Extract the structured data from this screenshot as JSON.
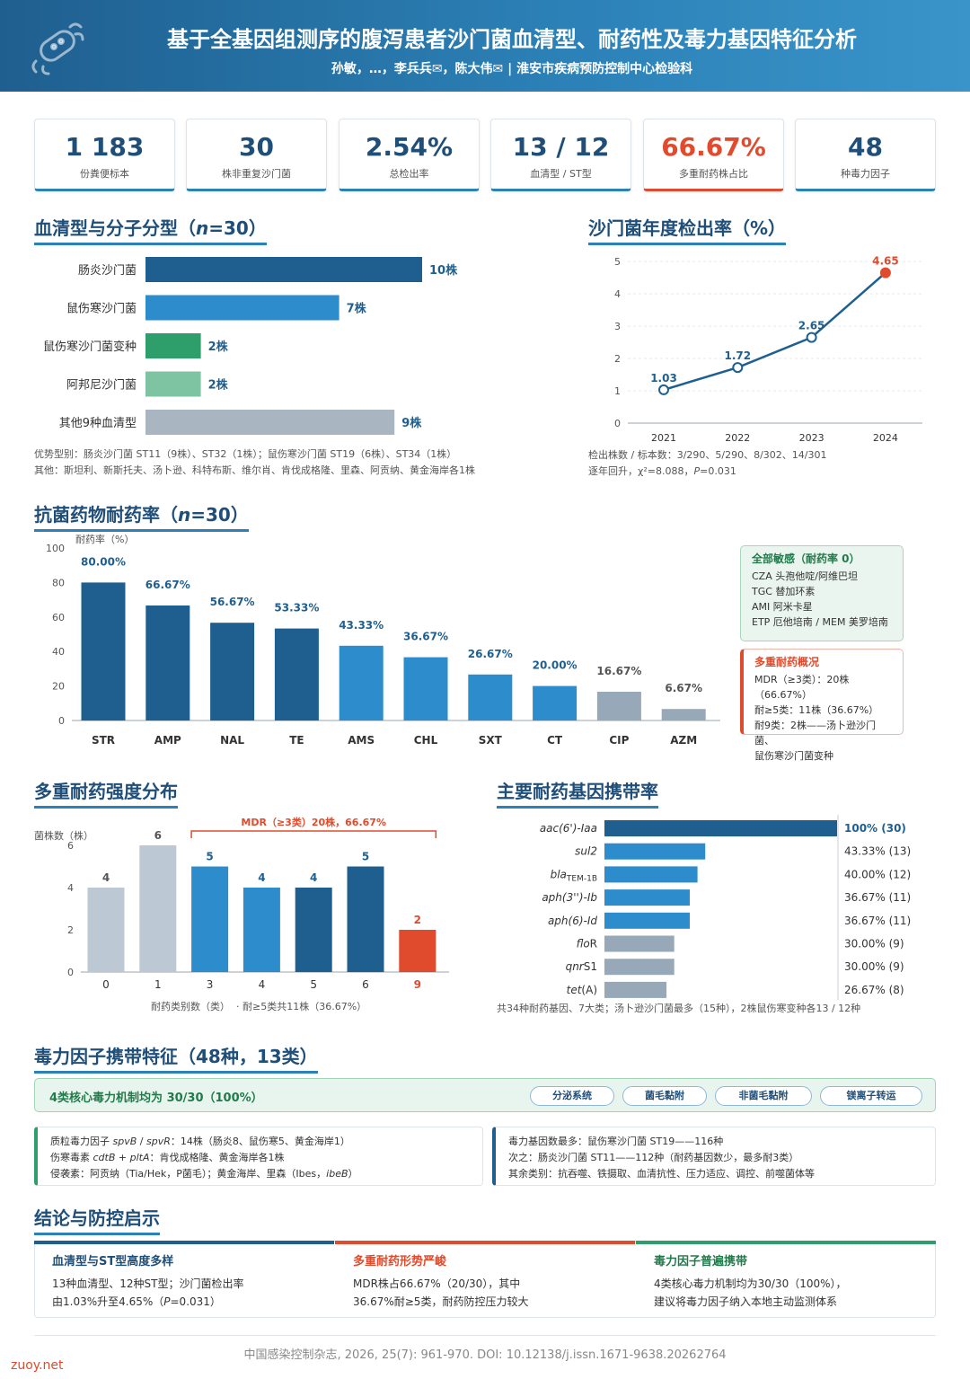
{
  "header": {
    "title": "基于全基因组测序的腹泻患者沙门菌血清型、耐药性及毒力基因特征分析",
    "authors": "孙敏，…，李兵兵✉，陈大伟✉ | 淮安市疾病预防控制中心检验科"
  },
  "stats": [
    {
      "value": "1 183",
      "label": "份粪便标本"
    },
    {
      "value": "30",
      "label": "株非重复沙门菌"
    },
    {
      "value": "2.54%",
      "label": "总检出率"
    },
    {
      "value": "13 / 12",
      "label": "血清型 / ST型"
    },
    {
      "value": "66.67%",
      "label": "多重耐药株占比"
    },
    {
      "value": "48",
      "label": "种毒力因子"
    }
  ],
  "serotype": {
    "title": "血清型与分子分型（n=30）",
    "bars": [
      {
        "name": "肠炎沙门菌",
        "value": 10,
        "label": "10株",
        "color": "#1f5f8f"
      },
      {
        "name": "鼠伤寒沙门菌",
        "value": 7,
        "label": "7株",
        "color": "#2c8ccc"
      },
      {
        "name": "鼠伤寒沙门菌变种",
        "value": 2,
        "label": "2株",
        "color": "#2e9e6a"
      },
      {
        "name": "阿邦尼沙门菌",
        "value": 2,
        "label": "2株",
        "color": "#7fc4a2"
      },
      {
        "name": "其他9种血清型",
        "value": 9,
        "label": "9株",
        "color": "#a9b5c1"
      }
    ],
    "note1": "优势型别：肠炎沙门菌 ST11（9株）、ST32（1株）；鼠伤寒沙门菌 ST19（6株）、ST34（1株）",
    "note2": "其他：斯坦利、新斯托夫、汤卜逊、科特布斯、维尔肖、肯伐成格隆、里森、阿贡纳、黄金海岸各1株"
  },
  "yearly": {
    "title": "沙门菌年度检出率（%）",
    "chart_data": {
      "type": "line",
      "x": [
        "2021",
        "2022",
        "2023",
        "2024"
      ],
      "values": [
        1.03,
        1.72,
        2.65,
        4.65
      ],
      "ylim": [
        0,
        5
      ],
      "yticks": [
        "0",
        "1",
        "2",
        "3",
        "4",
        "5"
      ]
    },
    "note1": "检出株数 / 标本数：3/290、5/290、8/302、14/301",
    "note2": "逐年回升，χ²=8.088，P=0.031"
  },
  "resistance": {
    "title": "抗菌药物耐药率（n=30）",
    "ylabel": "耐药率（%）",
    "chart_data": {
      "type": "bar",
      "categories": [
        "STR",
        "AMP",
        "NAL",
        "TE",
        "AMS",
        "CHL",
        "SXT",
        "CT",
        "CIP",
        "AZM"
      ],
      "values": [
        80.0,
        66.67,
        56.67,
        53.33,
        43.33,
        36.67,
        26.67,
        20.0,
        16.67,
        6.67
      ],
      "labels": [
        "80.00%",
        "66.67%",
        "56.67%",
        "53.33%",
        "43.33%",
        "36.67%",
        "26.67%",
        "20.00%",
        "16.67%",
        "6.67%"
      ],
      "ylim": [
        0,
        100
      ],
      "yticks": [
        "0",
        "20",
        "40",
        "60",
        "80",
        "100"
      ],
      "colors": [
        "#1f5f8f",
        "#1f5f8f",
        "#1f5f8f",
        "#1f5f8f",
        "#2c8ccc",
        "#2c8ccc",
        "#2c8ccc",
        "#2c8ccc",
        "#97a9b9",
        "#97a9b9"
      ]
    },
    "sensitive": {
      "title": "全部敏感（耐药率 0）",
      "lines": [
        "CZA 头孢他啶/阿维巴坦",
        "TGC 替加环素",
        "AMI 阿米卡星",
        "ETP 厄他培南 / MEM 美罗培南"
      ]
    },
    "mdr": {
      "title": "多重耐药概况",
      "lines": [
        "MDR（≥3类）：20株（66.67%）",
        "耐≥5类：11株（36.67%）",
        "耐9类：2株——汤卜逊沙门菌、",
        "鼠伤寒沙门菌变种"
      ]
    }
  },
  "mdrdist": {
    "title": "多重耐药强度分布",
    "ylabel": "菌株数（株）",
    "bracket": "MDR（≥3类）20株，66.67%",
    "xlabel": "耐药类别数（类）",
    "xnote": "·   耐≥5类共11株（36.67%）",
    "chart_data": {
      "type": "bar",
      "categories": [
        "0",
        "1",
        "3",
        "4",
        "5",
        "6",
        "9"
      ],
      "values": [
        4,
        6,
        5,
        4,
        4,
        5,
        2
      ],
      "ylim": [
        0,
        6
      ],
      "yticks": [
        "0",
        "2",
        "4",
        "6"
      ],
      "colors": [
        "#bcc8d3",
        "#bcc8d3",
        "#2c8ccc",
        "#2c8ccc",
        "#1f5f8f",
        "#1f5f8f",
        "#e04b2d"
      ]
    }
  },
  "genes": {
    "title": "主要耐药基因携带率",
    "chart_data": {
      "type": "bar",
      "categories": [
        "aac(6')-Iaa",
        "sul2",
        "blaTEM-1B",
        "aph(3'')-Ib",
        "aph(6)-Id",
        "floR",
        "qnrS1",
        "tet(A)"
      ],
      "values": [
        100,
        43.33,
        40.0,
        36.67,
        36.67,
        30.0,
        30.0,
        26.67
      ],
      "labels": [
        "100% (30)",
        "43.33% (13)",
        "40.00% (12)",
        "36.67% (11)",
        "36.67% (11)",
        "30.00% (9)",
        "30.00% (9)",
        "26.67% (8)"
      ],
      "colors": [
        "#1f5f8f",
        "#2c8ccc",
        "#2c8ccc",
        "#2c8ccc",
        "#2c8ccc",
        "#97a9b9",
        "#97a9b9",
        "#97a9b9"
      ]
    },
    "note": "共34种耐药基因、7大类；汤卜逊沙门菌最多（15种），2株鼠伤寒变种各13 / 12种"
  },
  "virulence": {
    "title": "毒力因子携带特征（48种，13类）",
    "banner": "4类核心毒力机制均为 30/30（100%）",
    "pills": [
      "分泌系统",
      "菌毛黏附",
      "非菌毛黏附",
      "镁离子转运"
    ],
    "left": [
      "质粒毒力因子 spvB / spvR：14株（肠炎8、鼠伤寒5、黄金海岸1）",
      "伤寒毒素 cdtB + pltA：肯伐成格隆、黄金海岸各1株",
      "侵袭素：阿贡纳（Tia/Hek，P菌毛）；黄金海岸、里森（Ibes，ibeB）"
    ],
    "right": [
      "毒力基因数最多：鼠伤寒沙门菌 ST19——116种",
      "次之：肠炎沙门菌 ST11——112种（耐药基因数少，最多耐3类）",
      "其余类别：抗吞噬、铁摄取、血清抗性、压力适应、调控、前噬菌体等"
    ]
  },
  "conclusion": {
    "title": "结论与防控启示",
    "cards": [
      {
        "title": "血清型与ST型高度多样",
        "l1": "13种血清型、12种ST型；沙门菌检出率",
        "l2": "由1.03%升至4.65%（P=0.031）",
        "color": "#1f5f8f"
      },
      {
        "title": "多重耐药形势严峻",
        "l1": "MDR株占66.67%（20/30），其中",
        "l2": "36.67%耐≥5类，耐药防控压力较大",
        "color": "#e04b2d"
      },
      {
        "title": "毒力因子普遍携带",
        "l1": "4类核心毒力机制均为30/30（100%），",
        "l2": "建议将毒力因子纳入本地主动监测体系",
        "color": "#2e9e6a"
      }
    ]
  },
  "footer": "中国感染控制杂志, 2026, 25(7): 961-970. DOI: 10.12138/j.issn.1671-9638.20262764",
  "watermark": "zuoy.net"
}
